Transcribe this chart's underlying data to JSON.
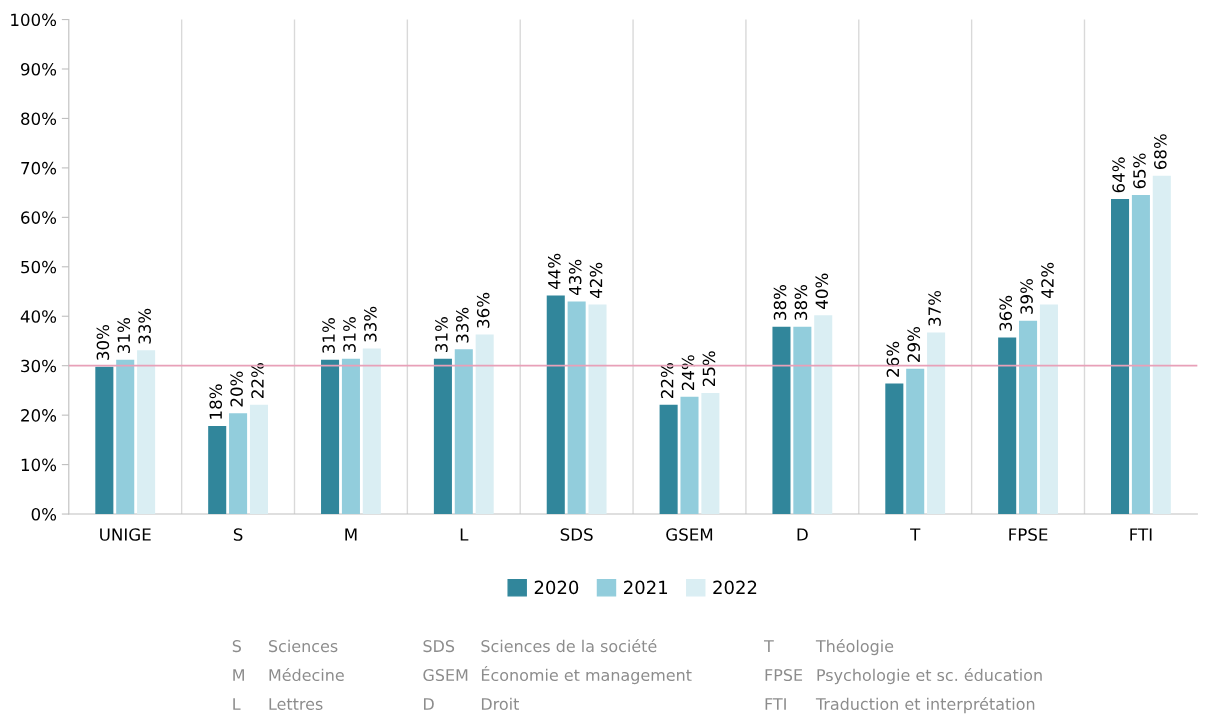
{
  "chart_data": {
    "type": "bar",
    "categories": [
      "UNIGE",
      "S",
      "M",
      "L",
      "SDS",
      "GSEM",
      "D",
      "T",
      "FPSE",
      "FTI"
    ],
    "series": [
      {
        "name": "2020",
        "color": "#31869b",
        "values": [
          29.8,
          17.8,
          31.2,
          31.4,
          44.2,
          22.1,
          37.9,
          26.4,
          35.7,
          63.7
        ],
        "value_labels": [
          "30%",
          "18%",
          "31%",
          "31%",
          "44%",
          "22%",
          "38%",
          "26%",
          "36%",
          "64%"
        ]
      },
      {
        "name": "2021",
        "color": "#92cddc",
        "values": [
          31.2,
          20.4,
          31.4,
          33.3,
          43.0,
          23.7,
          37.9,
          29.4,
          39.1,
          64.5
        ],
        "value_labels": [
          "31%",
          "20%",
          "31%",
          "33%",
          "43%",
          "24%",
          "38%",
          "29%",
          "39%",
          "65%"
        ]
      },
      {
        "name": "2022",
        "color": "#daeef3",
        "values": [
          33.1,
          22.1,
          33.5,
          36.3,
          42.4,
          24.5,
          40.2,
          36.7,
          42.4,
          68.4
        ],
        "value_labels": [
          "33%",
          "22%",
          "33%",
          "36%",
          "42%",
          "25%",
          "40%",
          "37%",
          "42%",
          "68%"
        ]
      }
    ],
    "ylim": [
      0,
      100
    ],
    "yticks": [
      {
        "value": 0,
        "label": "0%"
      },
      {
        "value": 10,
        "label": "10%"
      },
      {
        "value": 20,
        "label": "20%"
      },
      {
        "value": 30,
        "label": "30%"
      },
      {
        "value": 40,
        "label": "40%"
      },
      {
        "value": 50,
        "label": "50%"
      },
      {
        "value": 60,
        "label": "60%"
      },
      {
        "value": 70,
        "label": "70%"
      },
      {
        "value": 80,
        "label": "80%"
      },
      {
        "value": 90,
        "label": "90%"
      },
      {
        "value": 100,
        "label": "100%"
      }
    ],
    "ref_lines": [
      {
        "axis": "y",
        "value": 30,
        "color": "#e8a0b8"
      }
    ],
    "grid": "x",
    "legend": "bottom",
    "annotations": [
      "S Sciences",
      "M Médecine",
      "L Lettres",
      "SDS Sciences de la société",
      "GSEM Économie et management",
      "D Droit",
      "T Théologie",
      "FPSE Psychologie et sc. éducation",
      "FTI Traduction et interprétation"
    ]
  }
}
